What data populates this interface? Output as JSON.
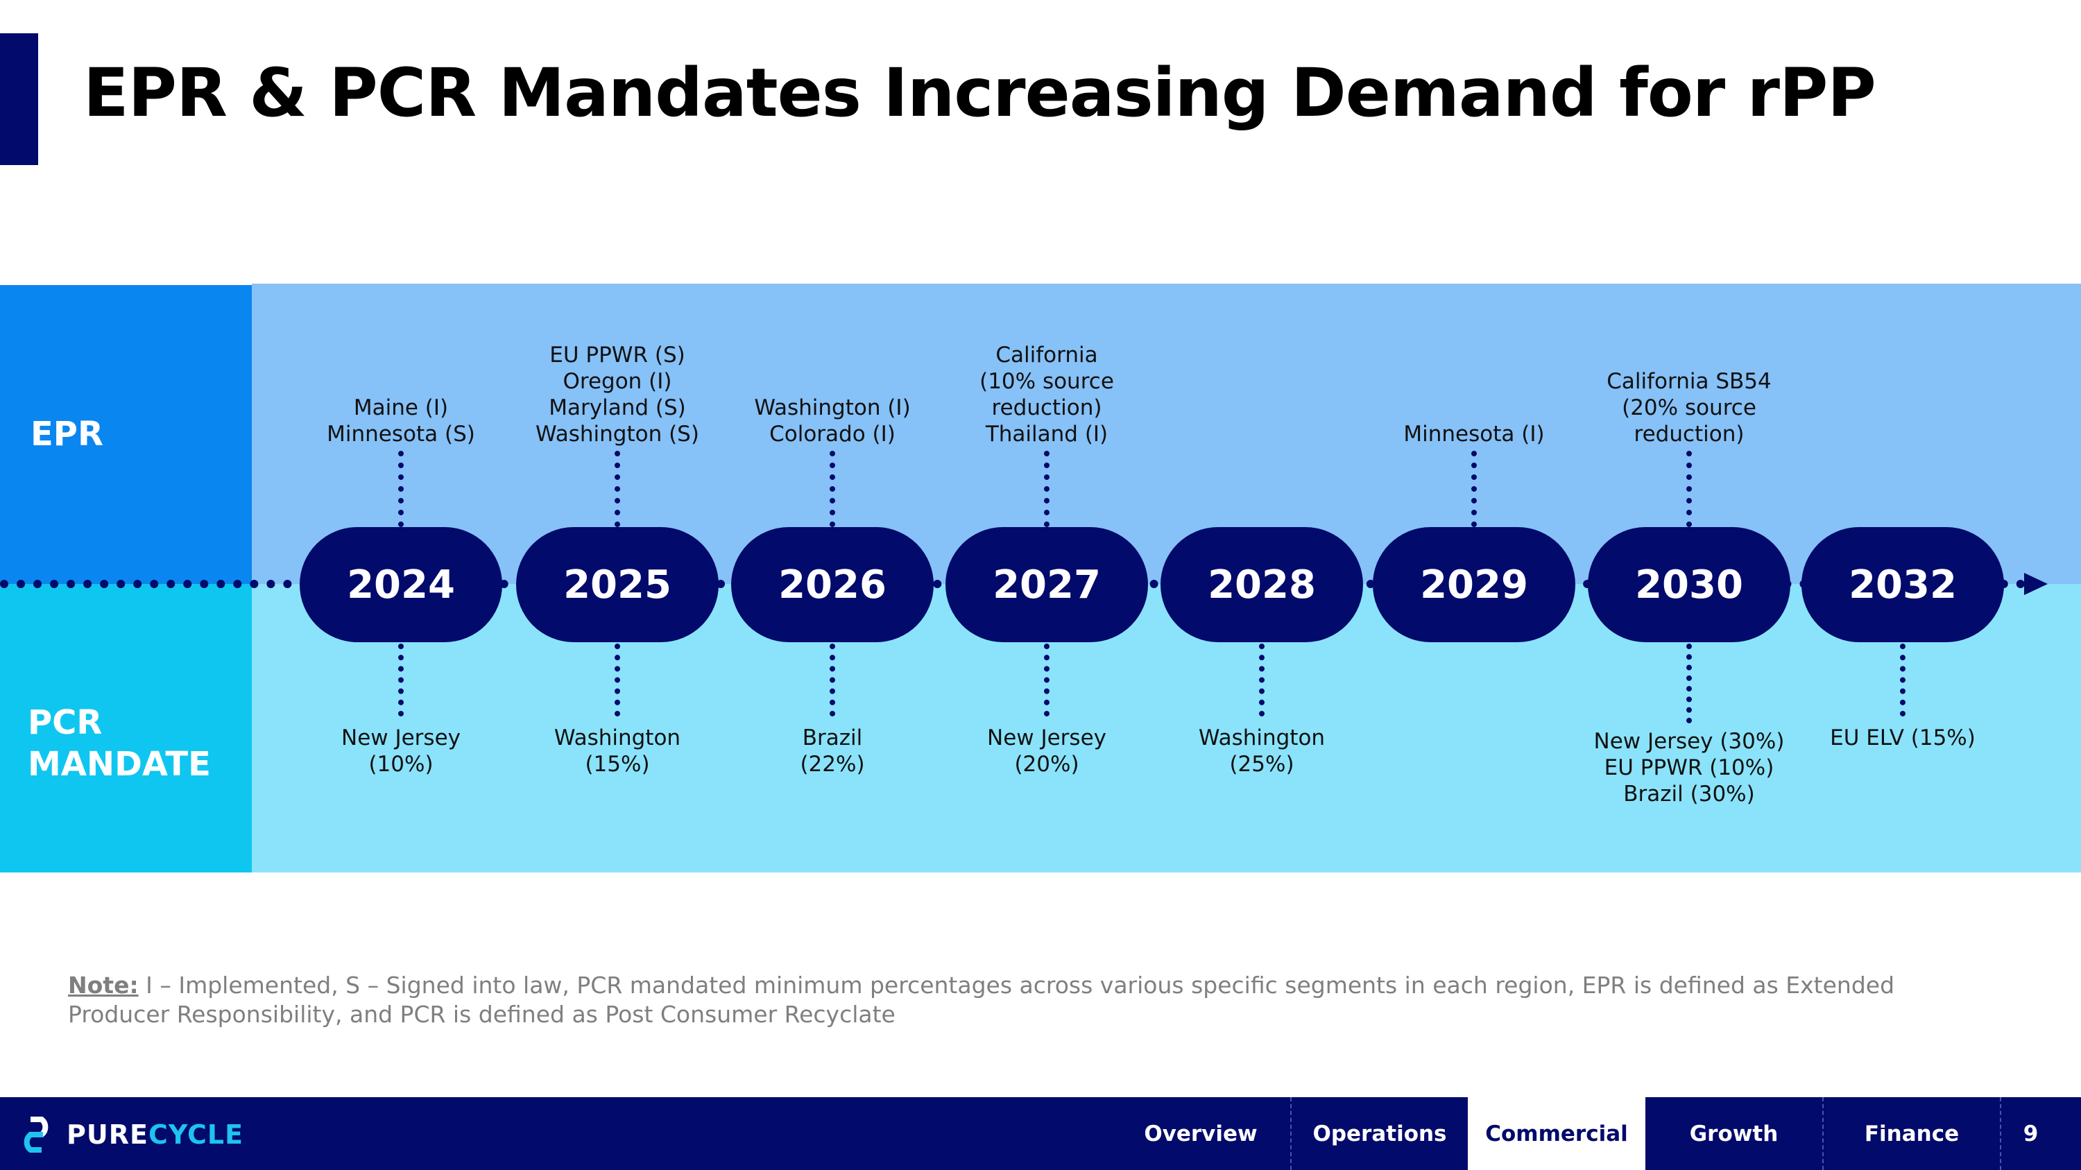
{
  "title": "EPR & PCR Mandates Increasing Demand for rPP",
  "rows": {
    "epr": "EPR",
    "pcr_line1": "PCR",
    "pcr_line2": "MANDATE"
  },
  "timeline": [
    {
      "year": "2024",
      "epr": [
        "Maine (I)",
        "Minnesota (S)"
      ],
      "pcr": [
        "New Jersey",
        "(10%)"
      ]
    },
    {
      "year": "2025",
      "epr": [
        "EU PPWR (S)",
        "Oregon (I)",
        "Maryland (S)",
        "Washington (S)"
      ],
      "pcr": [
        "Washington",
        "(15%)"
      ]
    },
    {
      "year": "2026",
      "epr": [
        "Washington (I)",
        "Colorado (I)"
      ],
      "pcr": [
        "Brazil",
        "(22%)"
      ]
    },
    {
      "year": "2027",
      "epr": [
        "California",
        "(10% source",
        "reduction)",
        "Thailand (I)"
      ],
      "pcr": [
        "New Jersey",
        "(20%)"
      ]
    },
    {
      "year": "2028",
      "epr": [],
      "pcr": [
        "Washington",
        "(25%)"
      ]
    },
    {
      "year": "2029",
      "epr": [
        "Minnesota (I)"
      ],
      "pcr": []
    },
    {
      "year": "2030",
      "epr": [
        "California SB54",
        "(20% source",
        "reduction)"
      ],
      "pcr": [
        "New Jersey (30%)",
        "EU PPWR (10%)",
        "Brazil (30%)"
      ]
    },
    {
      "year": "2032",
      "epr": [],
      "pcr": [
        "EU ELV (15%)"
      ]
    }
  ],
  "note": {
    "label": "Note:",
    "text": " I – Implemented, S – Signed into law, PCR mandated minimum percentages across various specific segments in each region, EPR is defined as Extended Producer Responsibility, and PCR is defined as Post Consumer Recyclate"
  },
  "footer": {
    "logo_part1": "PURE",
    "logo_part2": "CYCLE",
    "tabs": [
      "Overview",
      "Operations",
      "Commercial",
      "Growth",
      "Finance"
    ],
    "active_tab": "Commercial",
    "page_number": "9"
  },
  "colors": {
    "navy": "#020A6B",
    "epr_label": "#0A86F0",
    "epr_band": "#86C1F7",
    "pcr_label": "#0FC6F0",
    "pcr_band": "#8AE3FA"
  }
}
